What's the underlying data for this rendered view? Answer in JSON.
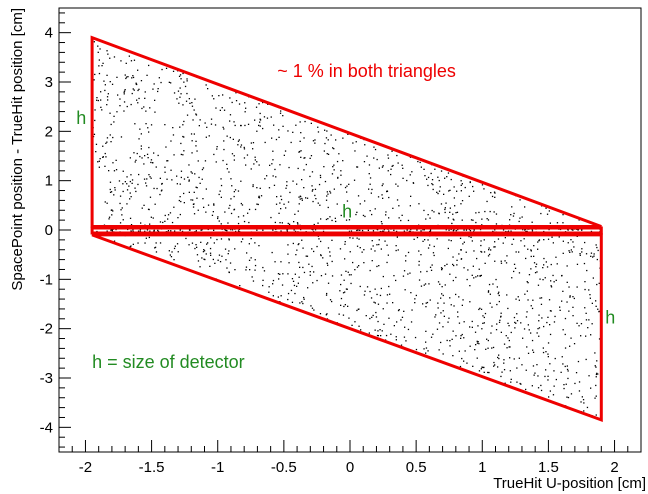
{
  "chart_data": {
    "type": "scatter",
    "title": "",
    "xlabel": "TrueHit U-position [cm]",
    "ylabel": "SpacePoint position - TrueHit position [cm]",
    "xlim": [
      -2.2,
      2.2
    ],
    "ylim": [
      -4.5,
      4.5
    ],
    "x_ticks": [
      -2,
      -1.5,
      -1,
      -0.5,
      0,
      0.5,
      1,
      1.5,
      2
    ],
    "x_tick_labels": [
      "-2",
      "-1.5",
      "-1",
      "-0.5",
      "0",
      "0.5",
      "1",
      "1.5",
      "2"
    ],
    "y_ticks": [
      -4,
      -3,
      -2,
      -1,
      0,
      1,
      2,
      3,
      4
    ],
    "y_tick_labels": [
      "-4",
      "-3",
      "-2",
      "-1",
      "0",
      "1",
      "2",
      "3",
      "4"
    ],
    "grid": false,
    "legend": "none",
    "point_color": "#000000",
    "shape_color": "#ee0000",
    "label_color": "#228b22",
    "regions": [
      {
        "name": "upper-triangle",
        "vertices": [
          [
            -1.95,
            3.9
          ],
          [
            1.9,
            0.07
          ],
          [
            -1.95,
            0.07
          ]
        ]
      },
      {
        "name": "lower-triangle",
        "vertices": [
          [
            -1.95,
            -0.1
          ],
          [
            1.9,
            -3.85
          ],
          [
            1.9,
            -0.1
          ]
        ]
      },
      {
        "name": "central-band",
        "vertices": [
          [
            -1.95,
            -0.06
          ],
          [
            1.9,
            -0.06
          ],
          [
            1.9,
            0.04
          ],
          [
            -1.95,
            0.04
          ]
        ]
      }
    ],
    "point_density": {
      "upper-triangle": 850,
      "lower-triangle": 850,
      "central-band": 260
    },
    "annotations": [
      {
        "text": "~ 1 % in both triangles",
        "x": -0.55,
        "y": 3.1,
        "color": "#ee0000"
      },
      {
        "text": "h",
        "x": -2.07,
        "y": 2.15,
        "color": "#228b22"
      },
      {
        "text": "h",
        "x": -0.06,
        "y": 0.25,
        "color": "#228b22"
      },
      {
        "text": "h",
        "x": 1.93,
        "y": -1.9,
        "color": "#228b22"
      },
      {
        "text": "h = size of detector",
        "x": -1.95,
        "y": -2.8,
        "color": "#228b22"
      }
    ]
  }
}
